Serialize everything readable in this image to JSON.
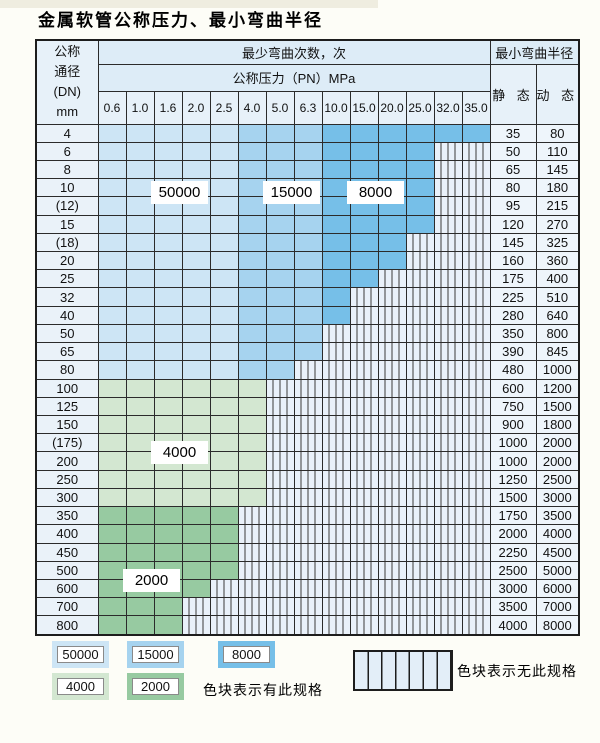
{
  "title": "金属软管公称压力、最小弯曲半径",
  "colors": {
    "50000": "#cde5f5",
    "15000": "#a6d3ef",
    "8000": "#76bfe8",
    "4000": "#d3e7d1",
    "2000": "#97caa1",
    "striped_bg": "#e9f1fa"
  },
  "table": {
    "header": {
      "dn_label_lines": [
        "公称",
        "通径",
        "(DN)",
        "mm"
      ],
      "bend_times_label": "最少弯曲次数，次",
      "pressure_label": "公称压力（PN）MPa",
      "pressures": [
        "0.6",
        "1.0",
        "1.6",
        "2.0",
        "2.5",
        "4.0",
        "5.0",
        "6.3",
        "10.0",
        "15.0",
        "20.0",
        "25.0",
        "32.0",
        "35.0"
      ],
      "radius_label": "最小弯曲半径",
      "static_label": "静 态",
      "dynamic_label": "动 态"
    },
    "blue_zones": [
      {
        "through": "2.5",
        "value": "50000"
      },
      {
        "through": "6.3",
        "value": "15000"
      },
      {
        "through": "35.0",
        "value": "8000"
      }
    ],
    "rows": [
      {
        "dn": "4",
        "type": "blue",
        "through": "35.0",
        "static": "35",
        "dynamic": "80"
      },
      {
        "dn": "6",
        "type": "blue",
        "through": "25.0",
        "static": "50",
        "dynamic": "110"
      },
      {
        "dn": "8",
        "type": "blue",
        "through": "25.0",
        "static": "65",
        "dynamic": "145"
      },
      {
        "dn": "10",
        "type": "blue",
        "through": "25.0",
        "static": "80",
        "dynamic": "180"
      },
      {
        "dn": "(12)",
        "type": "blue",
        "through": "25.0",
        "static": "95",
        "dynamic": "215"
      },
      {
        "dn": "15",
        "type": "blue",
        "through": "25.0",
        "static": "120",
        "dynamic": "270"
      },
      {
        "dn": "(18)",
        "type": "blue",
        "through": "20.0",
        "static": "145",
        "dynamic": "325"
      },
      {
        "dn": "20",
        "type": "blue",
        "through": "20.0",
        "static": "160",
        "dynamic": "360"
      },
      {
        "dn": "25",
        "type": "blue",
        "through": "15.0",
        "static": "175",
        "dynamic": "400"
      },
      {
        "dn": "32",
        "type": "blue",
        "through": "10.0",
        "static": "225",
        "dynamic": "510"
      },
      {
        "dn": "40",
        "type": "blue",
        "through": "10.0",
        "static": "280",
        "dynamic": "640"
      },
      {
        "dn": "50",
        "type": "blue",
        "through": "6.3",
        "static": "350",
        "dynamic": "800"
      },
      {
        "dn": "65",
        "type": "blue",
        "through": "6.3",
        "static": "390",
        "dynamic": "845"
      },
      {
        "dn": "80",
        "type": "blue",
        "through": "5.0",
        "static": "480",
        "dynamic": "1000"
      },
      {
        "dn": "100",
        "type": "4000",
        "through": "4.0",
        "static": "600",
        "dynamic": "1200"
      },
      {
        "dn": "125",
        "type": "4000",
        "through": "4.0",
        "static": "750",
        "dynamic": "1500"
      },
      {
        "dn": "150",
        "type": "4000",
        "through": "4.0",
        "static": "900",
        "dynamic": "1800"
      },
      {
        "dn": "(175)",
        "type": "4000",
        "through": "4.0",
        "static": "1000",
        "dynamic": "2000"
      },
      {
        "dn": "200",
        "type": "4000",
        "through": "4.0",
        "static": "1000",
        "dynamic": "2000"
      },
      {
        "dn": "250",
        "type": "4000",
        "through": "4.0",
        "static": "1250",
        "dynamic": "2500"
      },
      {
        "dn": "300",
        "type": "4000",
        "through": "4.0",
        "static": "1500",
        "dynamic": "3000"
      },
      {
        "dn": "350",
        "type": "2000",
        "through": "2.5",
        "static": "1750",
        "dynamic": "3500"
      },
      {
        "dn": "400",
        "type": "2000",
        "through": "2.5",
        "static": "2000",
        "dynamic": "4000"
      },
      {
        "dn": "450",
        "type": "2000",
        "through": "2.5",
        "static": "2250",
        "dynamic": "4500"
      },
      {
        "dn": "500",
        "type": "2000",
        "through": "2.5",
        "static": "2500",
        "dynamic": "5000"
      },
      {
        "dn": "600",
        "type": "2000",
        "through": "2.0",
        "static": "3000",
        "dynamic": "6000"
      },
      {
        "dn": "700",
        "type": "2000",
        "through": "1.6",
        "static": "3500",
        "dynamic": "7000"
      },
      {
        "dn": "800",
        "type": "2000",
        "through": "1.6",
        "static": "4000",
        "dynamic": "8000"
      }
    ]
  },
  "overlay_labels": [
    {
      "text": "50000",
      "col": 2,
      "row": 3
    },
    {
      "text": "15000",
      "col": 6,
      "row": 3
    },
    {
      "text": "8000",
      "col": 9,
      "row": 3
    },
    {
      "text": "4000",
      "col": 2,
      "row": 18
    },
    {
      "text": "2000",
      "col": 1,
      "row": 25
    }
  ],
  "legend": {
    "swatches": [
      "50000",
      "15000",
      "8000",
      "4000",
      "2000"
    ],
    "has_spec_label": "色块表示有此规格",
    "no_spec_label": "色块表示无此规格"
  }
}
